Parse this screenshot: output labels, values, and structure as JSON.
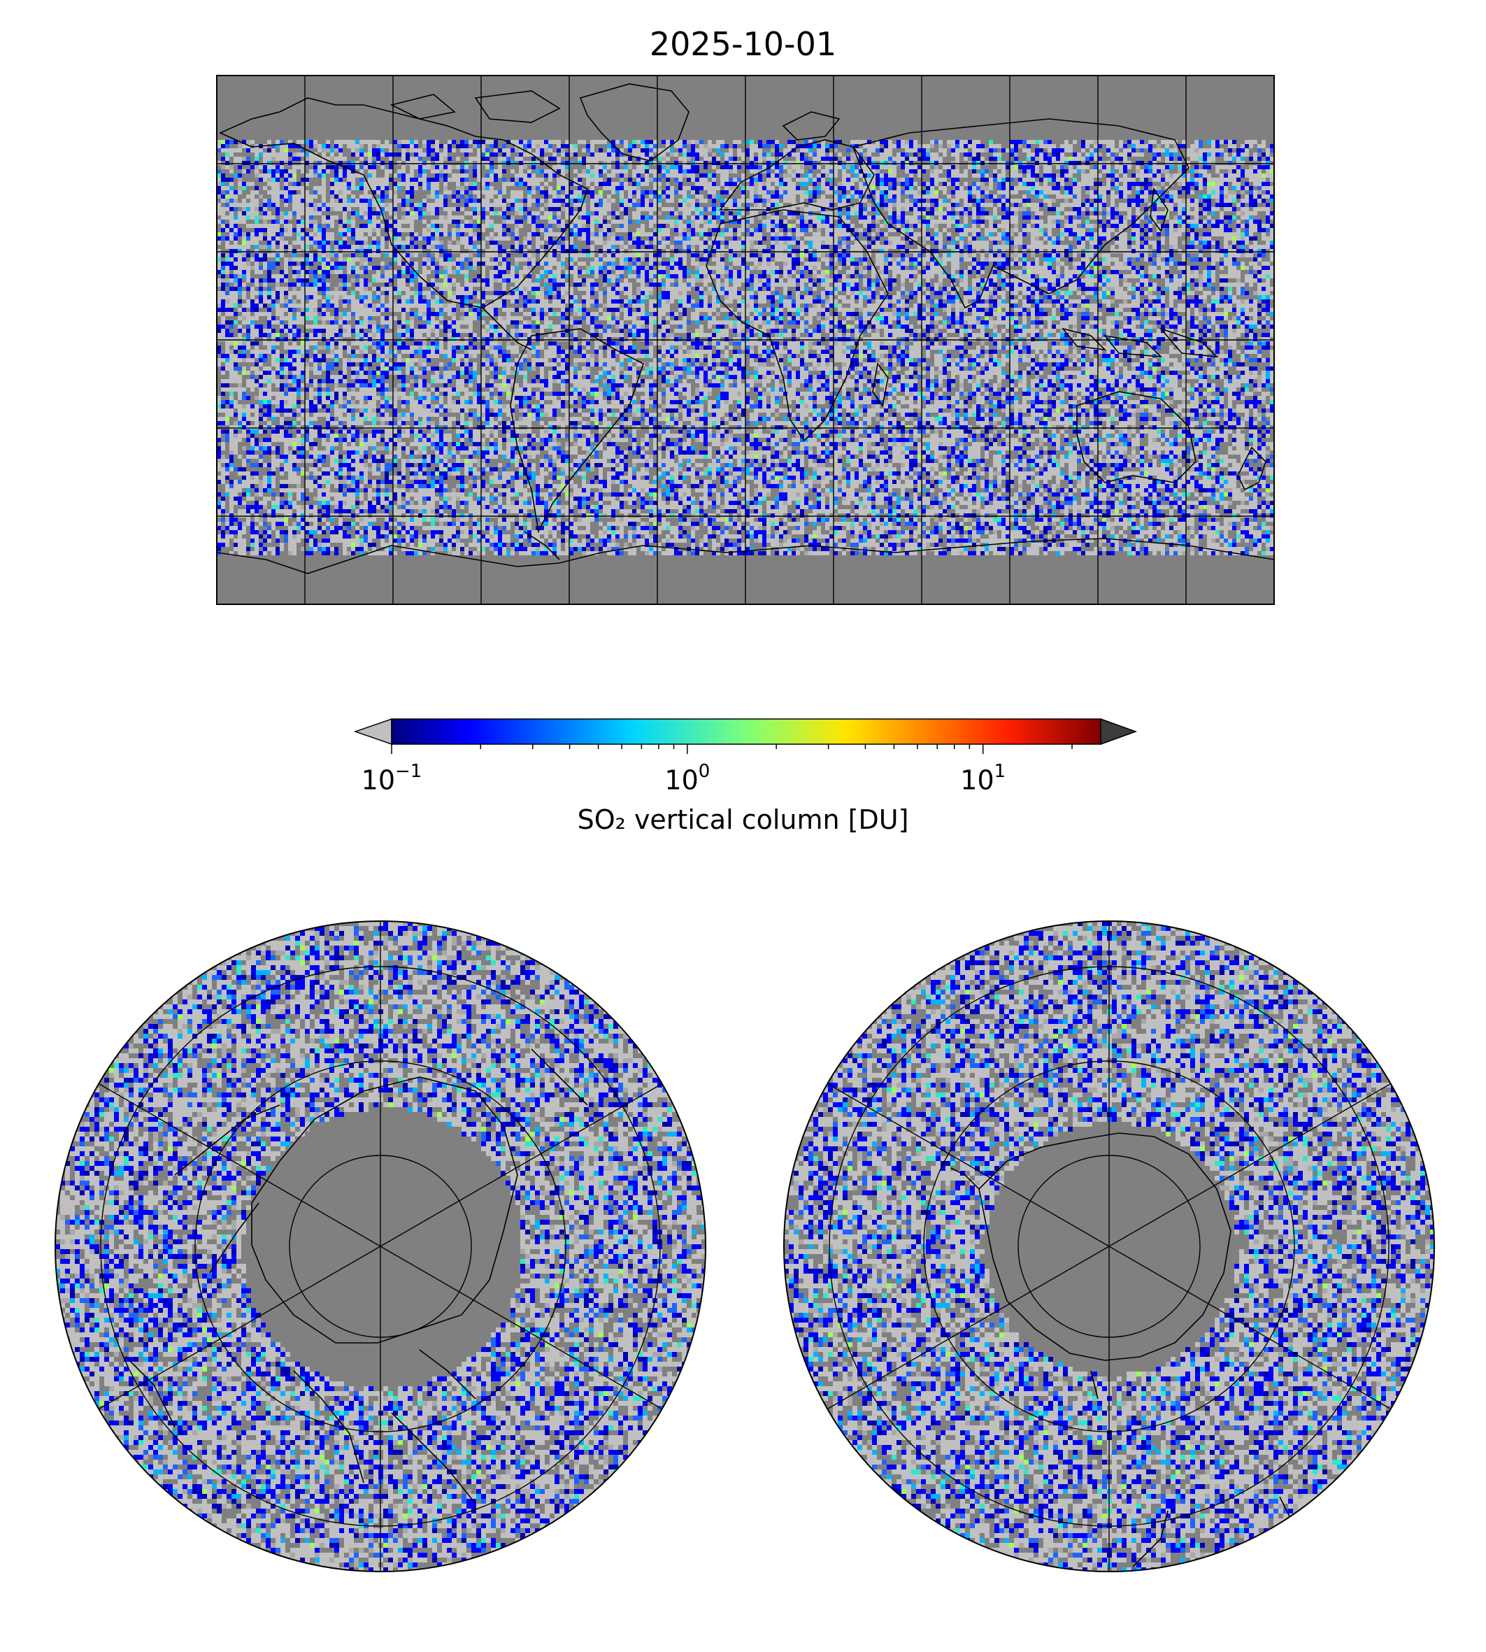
{
  "title": "2025-10-01",
  "colorbar": {
    "label": "SO₂ vertical column [DU]",
    "scale": "log",
    "range": [
      0.1,
      25
    ],
    "ticks": [
      {
        "base": "10",
        "exp": "−1",
        "value": 0.1
      },
      {
        "base": "10",
        "exp": "0",
        "value": 1
      },
      {
        "base": "10",
        "exp": "1",
        "value": 10
      }
    ],
    "colormap": "jet",
    "under_color": "#c0c0c0",
    "over_color": "#3c3c3c"
  },
  "map_global": {
    "projection": "plate-carree",
    "lon_range": [
      -180,
      180
    ],
    "lat_range": [
      -90,
      90
    ],
    "gridline_lons": [
      -150,
      -120,
      -90,
      -60,
      -30,
      0,
      30,
      60,
      90,
      120,
      150
    ],
    "gridline_lats": [
      -60,
      -30,
      0,
      30,
      60
    ],
    "background_color": "#808080"
  },
  "map_north_polar": {
    "projection": "north-polar-stereographic",
    "hemisphere": "north"
  },
  "map_south_polar": {
    "projection": "south-polar-stereographic",
    "hemisphere": "south"
  },
  "colors": {
    "no_data": "#808080",
    "below_min": "#c0c0c0",
    "coastline": "#000000",
    "gridline": "#000000"
  }
}
